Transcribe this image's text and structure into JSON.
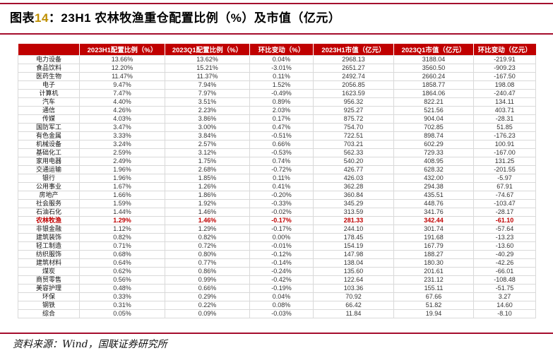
{
  "colors": {
    "header_bg": "#c00000",
    "header_text": "#ffffff",
    "rule": "#a50d2d",
    "highlight": "#c00000",
    "grid": "#d9d9d9",
    "body_text": "#333333",
    "title_number": "#bf8f00"
  },
  "title": {
    "prefix": "图表",
    "number": "14",
    "colon": "：",
    "text": "23H1 农林牧渔重仓配置比例（%）及市值（亿元）"
  },
  "table": {
    "headers": [
      "",
      "2023H1配置比例（%）",
      "2023Q1配置比例（%）",
      "环比变动（%）",
      "2023H1市值（亿元）",
      "2023Q1市值（亿元）",
      "环比变动（亿元）"
    ],
    "rows": [
      {
        "cells": [
          "电力设备",
          "13.66%",
          "13.62%",
          "0.04%",
          "2968.13",
          "3188.04",
          "-219.91"
        ],
        "highlight": false
      },
      {
        "cells": [
          "食品饮料",
          "12.20%",
          "15.21%",
          "-3.01%",
          "2651.27",
          "3560.50",
          "-909.23"
        ],
        "highlight": false
      },
      {
        "cells": [
          "医药生物",
          "11.47%",
          "11.37%",
          "0.11%",
          "2492.74",
          "2660.24",
          "-167.50"
        ],
        "highlight": false
      },
      {
        "cells": [
          "电子",
          "9.47%",
          "7.94%",
          "1.52%",
          "2056.85",
          "1858.77",
          "198.08"
        ],
        "highlight": false
      },
      {
        "cells": [
          "计算机",
          "7.47%",
          "7.97%",
          "-0.49%",
          "1623.59",
          "1864.06",
          "-240.47"
        ],
        "highlight": false
      },
      {
        "cells": [
          "汽车",
          "4.40%",
          "3.51%",
          "0.89%",
          "956.32",
          "822.21",
          "134.11"
        ],
        "highlight": false
      },
      {
        "cells": [
          "通信",
          "4.26%",
          "2.23%",
          "2.03%",
          "925.27",
          "521.56",
          "403.71"
        ],
        "highlight": false
      },
      {
        "cells": [
          "传媒",
          "4.03%",
          "3.86%",
          "0.17%",
          "875.72",
          "904.04",
          "-28.31"
        ],
        "highlight": false
      },
      {
        "cells": [
          "国防军工",
          "3.47%",
          "3.00%",
          "0.47%",
          "754.70",
          "702.85",
          "51.85"
        ],
        "highlight": false
      },
      {
        "cells": [
          "有色金属",
          "3.33%",
          "3.84%",
          "-0.51%",
          "722.51",
          "898.74",
          "-176.23"
        ],
        "highlight": false
      },
      {
        "cells": [
          "机械设备",
          "3.24%",
          "2.57%",
          "0.66%",
          "703.21",
          "602.29",
          "100.91"
        ],
        "highlight": false
      },
      {
        "cells": [
          "基础化工",
          "2.59%",
          "3.12%",
          "-0.53%",
          "562.33",
          "729.33",
          "-167.00"
        ],
        "highlight": false
      },
      {
        "cells": [
          "家用电器",
          "2.49%",
          "1.75%",
          "0.74%",
          "540.20",
          "408.95",
          "131.25"
        ],
        "highlight": false
      },
      {
        "cells": [
          "交通运输",
          "1.96%",
          "2.68%",
          "-0.72%",
          "426.77",
          "628.32",
          "-201.55"
        ],
        "highlight": false
      },
      {
        "cells": [
          "银行",
          "1.96%",
          "1.85%",
          "0.11%",
          "426.03",
          "432.00",
          "-5.97"
        ],
        "highlight": false
      },
      {
        "cells": [
          "公用事业",
          "1.67%",
          "1.26%",
          "0.41%",
          "362.28",
          "294.38",
          "67.91"
        ],
        "highlight": false
      },
      {
        "cells": [
          "房地产",
          "1.66%",
          "1.86%",
          "-0.20%",
          "360.84",
          "435.51",
          "-74.67"
        ],
        "highlight": false
      },
      {
        "cells": [
          "社会服务",
          "1.59%",
          "1.92%",
          "-0.33%",
          "345.29",
          "448.76",
          "-103.47"
        ],
        "highlight": false
      },
      {
        "cells": [
          "石油石化",
          "1.44%",
          "1.46%",
          "-0.02%",
          "313.59",
          "341.76",
          "-28.17"
        ],
        "highlight": false
      },
      {
        "cells": [
          "农林牧渔",
          "1.29%",
          "1.46%",
          "-0.17%",
          "281.33",
          "342.44",
          "-61.10"
        ],
        "highlight": true
      },
      {
        "cells": [
          "非银金融",
          "1.12%",
          "1.29%",
          "-0.17%",
          "244.10",
          "301.74",
          "-57.64"
        ],
        "highlight": false
      },
      {
        "cells": [
          "建筑装饰",
          "0.82%",
          "0.82%",
          "0.00%",
          "178.45",
          "191.68",
          "-13.23"
        ],
        "highlight": false
      },
      {
        "cells": [
          "轻工制造",
          "0.71%",
          "0.72%",
          "-0.01%",
          "154.19",
          "167.79",
          "-13.60"
        ],
        "highlight": false
      },
      {
        "cells": [
          "纺织服饰",
          "0.68%",
          "0.80%",
          "-0.12%",
          "147.98",
          "188.27",
          "-40.29"
        ],
        "highlight": false
      },
      {
        "cells": [
          "建筑材料",
          "0.64%",
          "0.77%",
          "-0.14%",
          "138.04",
          "180.30",
          "-42.26"
        ],
        "highlight": false
      },
      {
        "cells": [
          "煤炭",
          "0.62%",
          "0.86%",
          "-0.24%",
          "135.60",
          "201.61",
          "-66.01"
        ],
        "highlight": false
      },
      {
        "cells": [
          "商贸零售",
          "0.56%",
          "0.99%",
          "-0.42%",
          "122.64",
          "231.12",
          "-108.48"
        ],
        "highlight": false
      },
      {
        "cells": [
          "美容护理",
          "0.48%",
          "0.66%",
          "-0.19%",
          "103.36",
          "155.11",
          "-51.75"
        ],
        "highlight": false
      },
      {
        "cells": [
          "环保",
          "0.33%",
          "0.29%",
          "0.04%",
          "70.92",
          "67.66",
          "3.27"
        ],
        "highlight": false
      },
      {
        "cells": [
          "钢铁",
          "0.31%",
          "0.22%",
          "0.08%",
          "66.42",
          "51.82",
          "14.60"
        ],
        "highlight": false
      },
      {
        "cells": [
          "综合",
          "0.05%",
          "0.09%",
          "-0.03%",
          "11.84",
          "19.94",
          "-8.10"
        ],
        "highlight": false
      }
    ]
  },
  "footer": {
    "source": "资料来源：Wind，国联证券研究所"
  }
}
